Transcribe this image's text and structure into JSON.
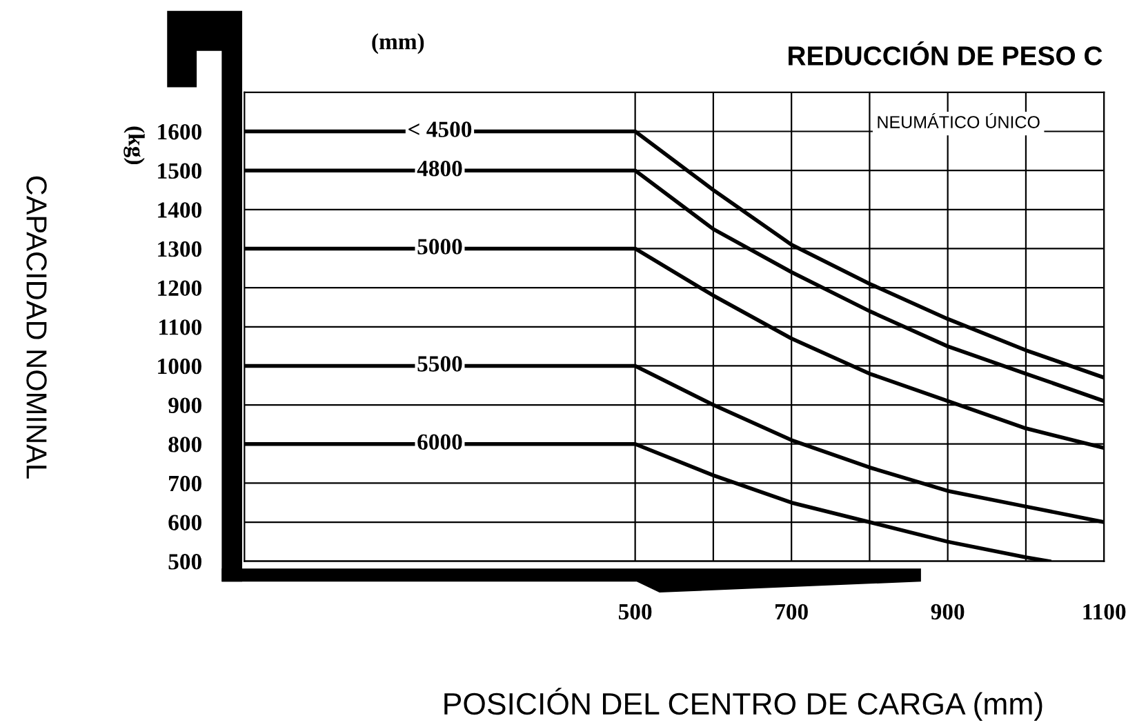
{
  "chart_data": {
    "type": "line",
    "title": "REDUCCIÓN DE PESO C",
    "subtitle": "NEUMÁTICO ÚNICO",
    "xlabel": "POSICIÓN DEL CENTRO DE CARGA (mm)",
    "ylabel": "CAPACIDAD NOMINAL",
    "annotations": [
      "(mm)",
      "(kg)"
    ],
    "series": [
      {
        "name": "< 4500",
        "color": "#000000",
        "x": [
          0,
          500,
          600,
          700,
          800,
          900,
          1000,
          1100
        ],
        "values": [
          1600,
          1600,
          1450,
          1310,
          1210,
          1120,
          1040,
          970
        ]
      },
      {
        "name": "4800",
        "color": "#000000",
        "x": [
          0,
          500,
          600,
          700,
          800,
          900,
          1000,
          1100
        ],
        "values": [
          1500,
          1500,
          1350,
          1240,
          1140,
          1050,
          980,
          910
        ]
      },
      {
        "name": "5000",
        "color": "#000000",
        "x": [
          0,
          500,
          600,
          700,
          800,
          900,
          1000,
          1100
        ],
        "values": [
          1300,
          1300,
          1180,
          1070,
          980,
          910,
          840,
          790
        ]
      },
      {
        "name": "5500",
        "color": "#000000",
        "x": [
          0,
          500,
          600,
          700,
          800,
          900,
          1000,
          1100
        ],
        "values": [
          1000,
          1000,
          900,
          810,
          740,
          680,
          640,
          600
        ]
      },
      {
        "name": "6000",
        "color": "#000000",
        "x": [
          0,
          500,
          600,
          700,
          800,
          900,
          1000,
          1030
        ],
        "values": [
          800,
          800,
          720,
          650,
          600,
          550,
          510,
          500
        ]
      }
    ],
    "xlim": [
      0,
      1100
    ],
    "ylim": [
      500,
      1700
    ],
    "xticks": [
      500,
      {
        "value": 600,
        "label": null
      },
      700,
      {
        "value": 800,
        "label": null
      },
      900,
      {
        "value": 1000,
        "label": null
      },
      1100
    ],
    "yticks": [
      500,
      600,
      700,
      800,
      900,
      1000,
      1100,
      1200,
      1300,
      1400,
      1500,
      1600
    ],
    "grid": true,
    "legend": false,
    "marker": "none",
    "line_style": "solid"
  }
}
